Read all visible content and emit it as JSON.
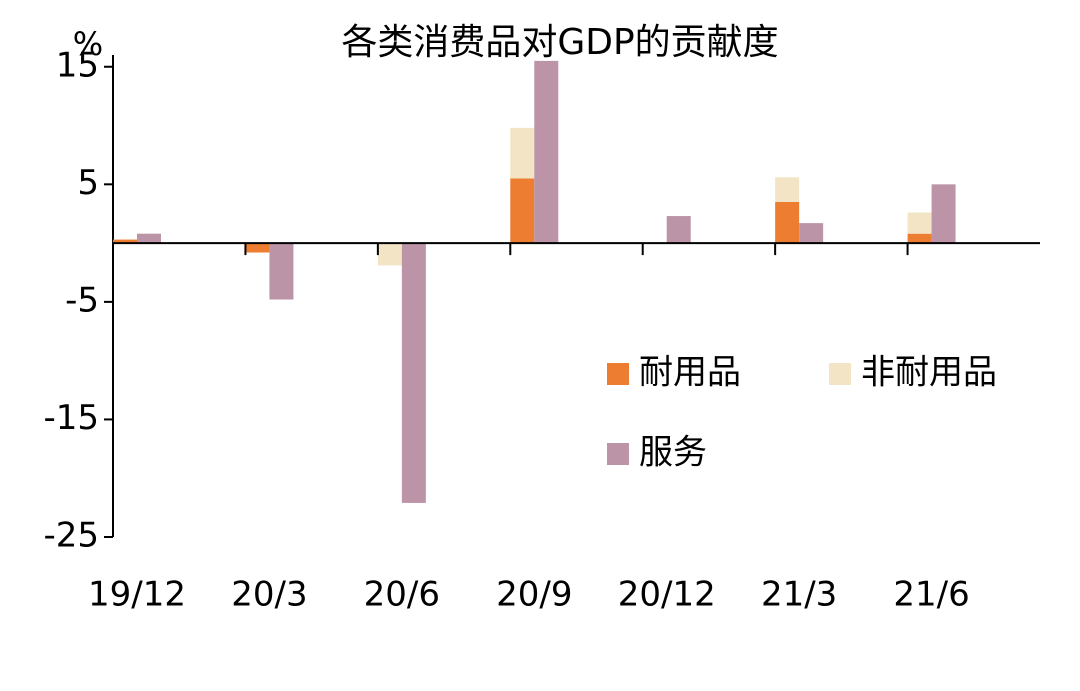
{
  "chart_data": {
    "type": "bar",
    "stacked_groups": true,
    "title": "各类消费品对GDP的贡献度",
    "y_label": "%",
    "categories": [
      "19/12",
      "20/3",
      "20/6",
      "20/9",
      "20/12",
      "21/3",
      "21/6"
    ],
    "series": [
      {
        "name": "耐用品",
        "color": "#ed7d31",
        "stack": "goods",
        "values": [
          0.3,
          -0.8,
          0,
          5.5,
          0,
          3.5,
          0.8
        ]
      },
      {
        "name": "非耐用品",
        "color": "#f2e4c4",
        "stack": "goods",
        "values": [
          0,
          0,
          -1.9,
          4.3,
          0,
          2.1,
          1.8
        ]
      },
      {
        "name": "服务",
        "color": "#bc94a8",
        "stack": "services",
        "values": [
          0.8,
          -4.8,
          -22.1,
          15.5,
          2.3,
          1.7,
          5
        ]
      }
    ],
    "ylim": [
      -25,
      16
    ],
    "yticks": [
      15,
      5,
      -5,
      -15,
      -25
    ],
    "grid": false
  }
}
